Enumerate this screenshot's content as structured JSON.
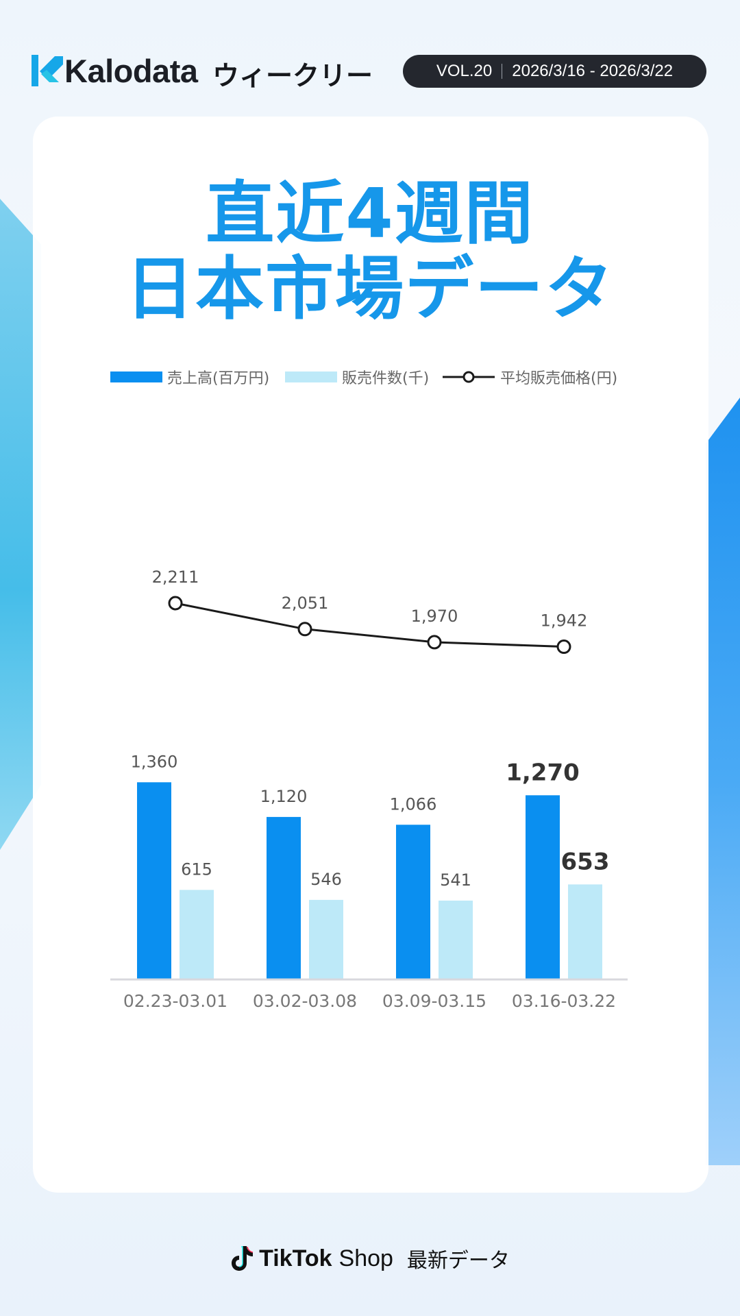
{
  "header": {
    "brand": "Kalodata",
    "weekly_label": "ウィークリー",
    "volume": "VOL.20",
    "date_range": "2026/3/16 - 2026/3/22"
  },
  "title": {
    "line1": "直近4週間",
    "line2": "日本市場データ"
  },
  "colors": {
    "sales": "#0a8ff0",
    "units": "#bde9f8",
    "price_line": "#1a1a1a",
    "title": "#1697ea"
  },
  "chart_data": {
    "type": "bar",
    "categories": [
      "02.23-03.01",
      "03.02-03.08",
      "03.09-03.15",
      "03.16-03.22"
    ],
    "series": [
      {
        "name": "売上高(百万円)",
        "type": "bar",
        "values": [
          1360,
          1120,
          1066,
          1270
        ],
        "labels": [
          "1,360",
          "1,120",
          "1,066",
          "1,270"
        ]
      },
      {
        "name": "販売件数(千)",
        "type": "bar",
        "values": [
          615,
          546,
          541,
          653
        ],
        "labels": [
          "615",
          "546",
          "541",
          "653"
        ]
      },
      {
        "name": "平均販売価格(円)",
        "type": "line",
        "values": [
          2211,
          2051,
          1970,
          1942
        ],
        "labels": [
          "2,211",
          "2,051",
          "1,970",
          "1,942"
        ]
      }
    ],
    "highlight_category": "03.16-03.22",
    "legend_position": "top"
  },
  "footer": {
    "brand": "TikTok",
    "shop": "Shop",
    "caption": "最新データ"
  }
}
